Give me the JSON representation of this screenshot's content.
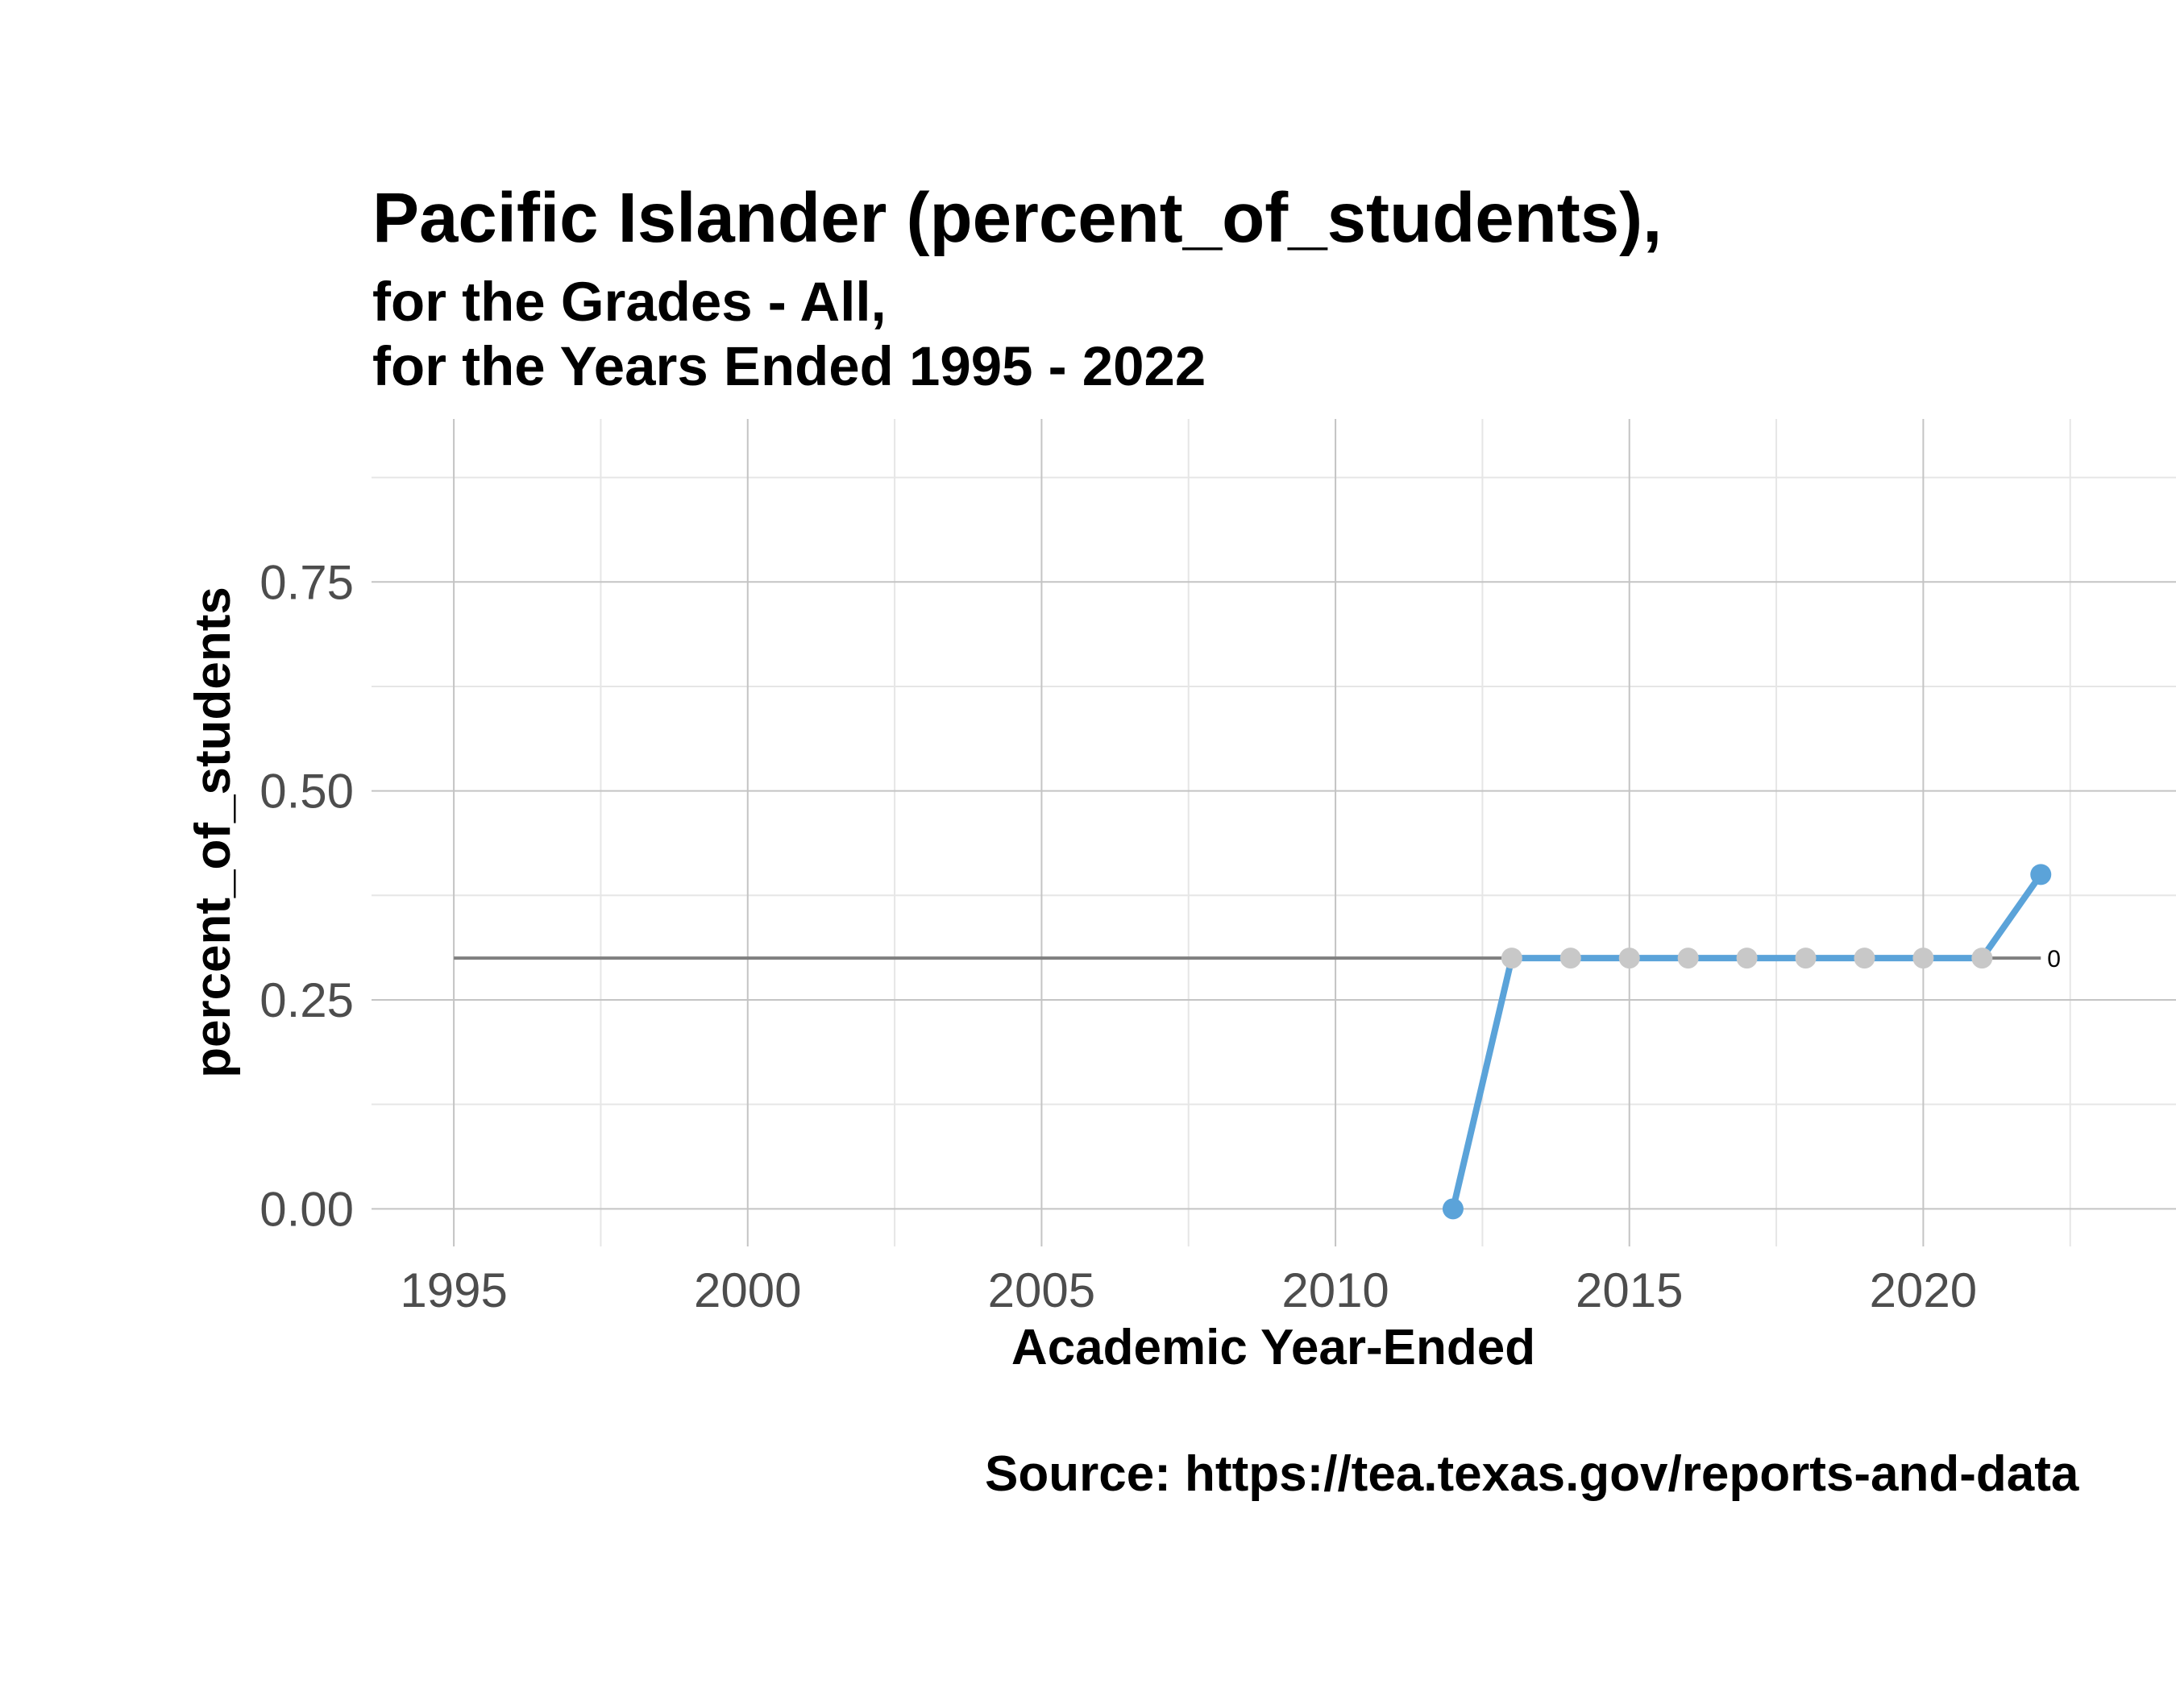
{
  "chart_data": {
    "type": "line",
    "title": "Pacific Islander (percent_of_students),",
    "subtitle_lines": [
      "for the Grades - All,",
      "for the Years Ended 1995  -  2022"
    ],
    "xlabel": "Academic Year-Ended",
    "ylabel": "percent_of_students",
    "caption": "Source:  https://tea.texas.gov/reports-and-data",
    "x_ticks": [
      1995,
      2000,
      2005,
      2010,
      2015,
      2020
    ],
    "y_ticks": [
      "0.00",
      "0.25",
      "0.50",
      "0.75"
    ],
    "xlim": [
      1993.6,
      2024.3
    ],
    "ylim": [
      -0.045,
      0.945
    ],
    "grid": true,
    "series": [
      {
        "x": [
          2012,
          2013,
          2014,
          2015,
          2016,
          2017,
          2018,
          2019,
          2020,
          2021,
          2022
        ],
        "values": [
          0.0,
          0.3,
          0.3,
          0.3,
          0.3,
          0.3,
          0.3,
          0.3,
          0.3,
          0.3,
          0.4
        ],
        "color": "#5ba3d9",
        "point_colors": [
          "#5ba3d9",
          "#c8c8c8",
          "#c8c8c8",
          "#c8c8c8",
          "#c8c8c8",
          "#c8c8c8",
          "#c8c8c8",
          "#c8c8c8",
          "#c8c8c8",
          "#c8c8c8",
          "#5ba3d9"
        ]
      }
    ],
    "reference_line": {
      "y": 0.3,
      "x_start": 1995,
      "x_end": 2022,
      "label": "0",
      "color": "#808080"
    }
  }
}
